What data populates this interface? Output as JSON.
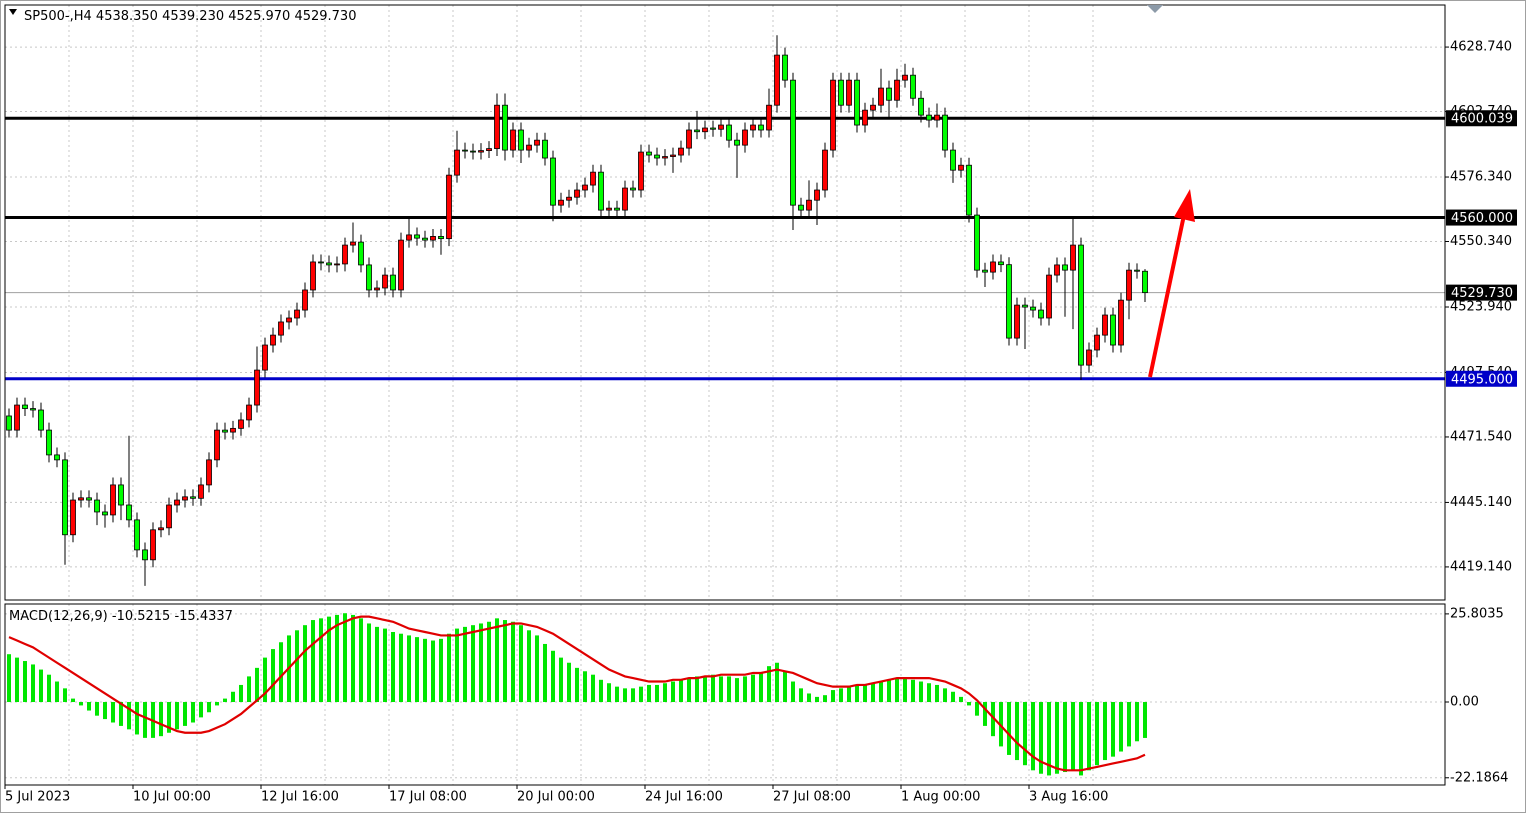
{
  "chart_data": [
    {
      "type": "candlestick",
      "symbol": "SP500-,H4",
      "ohlc_labels": [
        "4538.350",
        "4539.230",
        "4525.970",
        "4529.730"
      ],
      "categories": [
        "5 Jul 2023",
        null,
        null,
        null,
        null,
        null,
        null,
        null,
        null,
        null,
        null,
        null,
        null,
        null,
        null,
        null,
        "10 Jul 00:00",
        null,
        null,
        null,
        null,
        null,
        null,
        null,
        null,
        null,
        null,
        null,
        null,
        null,
        null,
        null,
        "12 Jul 16:00",
        null,
        null,
        null,
        null,
        null,
        null,
        null,
        null,
        null,
        null,
        null,
        null,
        null,
        null,
        null,
        "17 Jul 08:00",
        null,
        null,
        null,
        null,
        null,
        null,
        null,
        null,
        null,
        null,
        null,
        null,
        null,
        null,
        null,
        "20 Jul 00:00",
        null,
        null,
        null,
        null,
        null,
        null,
        null,
        null,
        null,
        null,
        null,
        null,
        null,
        null,
        null,
        "24 Jul 16:00",
        null,
        null,
        null,
        null,
        null,
        null,
        null,
        null,
        null,
        null,
        null,
        null,
        null,
        null,
        null,
        "27 Jul 08:00",
        null,
        null,
        null,
        null,
        null,
        null,
        null,
        null,
        null,
        null,
        null,
        null,
        null,
        null,
        null,
        "1 Aug 00:00",
        null,
        null,
        null,
        null,
        null,
        null,
        null,
        null,
        null,
        null,
        null,
        null,
        null,
        null,
        null,
        "3 Aug 16:00",
        null,
        null,
        null,
        null,
        null,
        null,
        null,
        null,
        null,
        null,
        null,
        null,
        null,
        null
      ],
      "open": [
        4480.0,
        4474.3,
        4484.4,
        4483.0,
        4482.4,
        4474.3,
        4464.3,
        4462.3,
        4432.1,
        4446.1,
        4447.0,
        4446.1,
        4441.3,
        4440.1,
        4452.2,
        4444.1,
        4438.1,
        4426.0,
        4422.0,
        4434.1,
        4434.9,
        4444.1,
        4446.1,
        4447.4,
        4446.8,
        4452.2,
        4462.3,
        4474.3,
        4473.5,
        4475.0,
        4478.4,
        4484.4,
        4498.5,
        4508.6,
        4512.6,
        4517.9,
        4519.5,
        4522.7,
        4530.8,
        4542.1,
        4541.7,
        4540.9,
        4541.3,
        4548.9,
        4550.1,
        4540.9,
        4530.8,
        4531.6,
        4536.8,
        4530.8,
        4550.9,
        4553.0,
        4551.7,
        4550.9,
        4552.4,
        4551.5,
        4577.1,
        4587.2,
        4586.8,
        4586.4,
        4587.0,
        4587.8,
        4605.3,
        4587.2,
        4595.3,
        4587.2,
        4589.2,
        4591.2,
        4584.0,
        4565.0,
        4567.0,
        4568.2,
        4571.1,
        4573.1,
        4578.3,
        4563.0,
        4563.8,
        4563.0,
        4571.9,
        4571.1,
        4586.4,
        4585.2,
        4584.0,
        4584.6,
        4585.2,
        4588.0,
        4595.3,
        4594.6,
        4596.1,
        4595.6,
        4597.3,
        4591.2,
        4589.2,
        4595.3,
        4597.3,
        4595.3,
        4605.3,
        4625.5,
        4615.4,
        4565.0,
        4563.0,
        4567.0,
        4571.1,
        4587.2,
        4615.4,
        4605.3,
        4615.4,
        4597.3,
        4603.3,
        4605.3,
        4612.2,
        4607.3,
        4615.4,
        4617.4,
        4608.1,
        4601.3,
        4599.3,
        4601.3,
        4587.2,
        4579.1,
        4581.1,
        4561.0,
        4538.8,
        4538.0,
        4542.1,
        4541.0,
        4511.4,
        4524.7,
        4523.9,
        4522.7,
        4519.5,
        4536.8,
        4540.9,
        4538.8,
        4548.9,
        4500.5,
        4506.6,
        4512.6,
        4520.7,
        4508.6,
        4526.7,
        4538.8,
        4538.35
      ],
      "high": [
        4483.0,
        4487.4,
        4487.4,
        4486.0,
        4485.4,
        4477.3,
        4467.3,
        4465.3,
        4449.1,
        4450.0,
        4450.0,
        4449.1,
        4444.3,
        4455.2,
        4455.2,
        4472.0,
        4441.1,
        4429.0,
        4437.1,
        4437.9,
        4447.1,
        4449.1,
        4450.4,
        4450.4,
        4455.2,
        4465.3,
        4477.3,
        4477.3,
        4478.0,
        4481.4,
        4487.4,
        4508.0,
        4511.6,
        4515.6,
        4520.9,
        4522.5,
        4525.7,
        4533.8,
        4545.1,
        4545.1,
        4544.7,
        4544.3,
        4551.9,
        4558.0,
        4553.1,
        4543.9,
        4534.6,
        4539.8,
        4539.8,
        4553.9,
        4560.0,
        4556.0,
        4554.7,
        4555.4,
        4555.4,
        4580.1,
        4595.0,
        4590.2,
        4589.8,
        4590.0,
        4590.8,
        4610.0,
        4610.0,
        4598.3,
        4598.3,
        4592.2,
        4594.2,
        4594.2,
        4587.0,
        4570.0,
        4571.2,
        4574.1,
        4576.1,
        4581.3,
        4581.3,
        4566.8,
        4566.8,
        4574.9,
        4574.9,
        4589.4,
        4589.4,
        4588.2,
        4587.6,
        4588.2,
        4591.0,
        4598.3,
        4603.0,
        4599.1,
        4599.1,
        4600.3,
        4600.3,
        4594.2,
        4598.3,
        4600.3,
        4600.3,
        4612.0,
        4633.5,
        4628.5,
        4618.4,
        4568.0,
        4575.0,
        4574.1,
        4590.2,
        4618.4,
        4618.4,
        4618.4,
        4618.4,
        4606.3,
        4608.3,
        4620.0,
        4615.2,
        4620.0,
        4622.0,
        4620.4,
        4611.1,
        4604.3,
        4606.0,
        4604.3,
        4590.2,
        4584.1,
        4584.1,
        4564.0,
        4541.8,
        4545.1,
        4545.1,
        4544.0,
        4527.7,
        4527.7,
        4526.9,
        4525.7,
        4539.8,
        4543.9,
        4543.9,
        4560.0,
        4551.9,
        4509.6,
        4515.6,
        4523.7,
        4523.7,
        4529.7,
        4541.8,
        4541.5,
        4539.23
      ],
      "low": [
        4471.3,
        4471.3,
        4480.0,
        4479.4,
        4471.3,
        4461.3,
        4459.3,
        4420.0,
        4429.1,
        4443.1,
        4443.1,
        4436.0,
        4435.0,
        4437.1,
        4438.0,
        4435.1,
        4423.0,
        4411.5,
        4419.0,
        4431.1,
        4431.9,
        4441.1,
        4443.1,
        4443.8,
        4443.8,
        4449.2,
        4459.3,
        4470.5,
        4470.5,
        4472.0,
        4475.4,
        4481.4,
        4495.5,
        4505.6,
        4509.6,
        4514.9,
        4516.5,
        4519.7,
        4527.8,
        4538.7,
        4537.9,
        4537.9,
        4538.3,
        4545.9,
        4537.9,
        4527.8,
        4527.8,
        4528.6,
        4527.8,
        4527.8,
        4547.9,
        4548.7,
        4547.9,
        4547.9,
        4545.0,
        4548.5,
        4574.1,
        4583.8,
        4583.4,
        4583.4,
        4584.0,
        4584.8,
        4583.0,
        4584.2,
        4582.0,
        4584.2,
        4586.2,
        4581.0,
        4558.5,
        4562.0,
        4564.0,
        4565.2,
        4568.1,
        4570.1,
        4560.0,
        4560.0,
        4560.0,
        4560.0,
        4568.1,
        4568.1,
        4582.2,
        4581.0,
        4581.0,
        4578.0,
        4582.2,
        4585.0,
        4591.6,
        4591.6,
        4592.6,
        4592.6,
        4588.2,
        4576.0,
        4586.2,
        4592.3,
        4592.3,
        4592.3,
        4602.3,
        4612.4,
        4555.0,
        4560.0,
        4560.0,
        4557.0,
        4568.1,
        4584.2,
        4602.3,
        4602.3,
        4594.3,
        4594.3,
        4600.3,
        4602.3,
        4600.0,
        4604.3,
        4612.4,
        4605.1,
        4598.3,
        4596.3,
        4596.3,
        4584.2,
        4574.0,
        4576.1,
        4558.0,
        4535.8,
        4532.0,
        4535.0,
        4538.0,
        4508.4,
        4508.4,
        4507.0,
        4519.7,
        4516.5,
        4516.5,
        4533.8,
        4520.0,
        4515.0,
        4494.5,
        4497.5,
        4503.6,
        4509.6,
        4505.6,
        4505.6,
        4519.0,
        4535.4,
        4525.97
      ],
      "close": [
        4474.3,
        4484.4,
        4483.0,
        4482.4,
        4474.3,
        4464.3,
        4462.3,
        4432.1,
        4446.1,
        4447.0,
        4446.1,
        4441.3,
        4440.1,
        4452.2,
        4444.1,
        4438.1,
        4426.0,
        4422.0,
        4434.1,
        4434.9,
        4444.1,
        4446.1,
        4447.4,
        4446.8,
        4452.2,
        4462.3,
        4474.3,
        4473.5,
        4475.0,
        4478.4,
        4484.4,
        4498.5,
        4508.6,
        4512.6,
        4517.9,
        4519.5,
        4522.7,
        4530.8,
        4542.1,
        4541.7,
        4540.9,
        4541.3,
        4548.9,
        4550.1,
        4540.9,
        4530.8,
        4531.6,
        4536.8,
        4530.8,
        4550.9,
        4553.0,
        4551.7,
        4550.9,
        4552.4,
        4551.5,
        4577.1,
        4587.2,
        4586.8,
        4586.4,
        4587.0,
        4587.8,
        4605.3,
        4587.2,
        4595.3,
        4587.2,
        4589.2,
        4591.2,
        4584.0,
        4565.0,
        4567.0,
        4568.2,
        4571.1,
        4573.1,
        4578.3,
        4563.0,
        4563.8,
        4563.0,
        4571.9,
        4571.1,
        4586.4,
        4585.2,
        4584.0,
        4584.6,
        4585.2,
        4588.0,
        4595.3,
        4594.6,
        4596.1,
        4595.6,
        4597.3,
        4591.2,
        4589.2,
        4595.3,
        4597.3,
        4595.3,
        4605.3,
        4625.5,
        4615.4,
        4565.0,
        4563.0,
        4567.0,
        4571.1,
        4587.2,
        4615.4,
        4605.3,
        4615.4,
        4597.3,
        4603.3,
        4605.3,
        4612.2,
        4607.3,
        4615.4,
        4617.4,
        4608.1,
        4601.3,
        4599.3,
        4601.3,
        4587.2,
        4579.1,
        4581.1,
        4561.0,
        4538.8,
        4538.0,
        4542.1,
        4541.0,
        4511.4,
        4524.7,
        4523.9,
        4522.7,
        4519.5,
        4536.8,
        4540.9,
        4538.8,
        4548.9,
        4500.5,
        4506.6,
        4512.6,
        4520.7,
        4508.6,
        4526.7,
        4538.8,
        4538.35,
        4529.73
      ],
      "bull_color": "#ff0000",
      "bear_color": "#00ff00",
      "ylim": [
        4405.8,
        4645.7
      ],
      "yticks": [
        {
          "value": 4628.74,
          "label": "4628.740"
        },
        {
          "value": 4602.74,
          "label": "4602.740"
        },
        {
          "value": 4576.34,
          "label": "4576.340"
        },
        {
          "value": 4550.34,
          "label": "4550.340"
        },
        {
          "value": 4523.94,
          "label": "4523.940"
        },
        {
          "value": 4497.54,
          "label": "4497.540"
        },
        {
          "value": 4471.54,
          "label": "4471.540"
        },
        {
          "value": 4445.14,
          "label": "4445.140"
        },
        {
          "value": 4419.14,
          "label": "4419.140"
        }
      ],
      "grid": true,
      "levels": [
        {
          "value": 4600.039,
          "label": "4600.039",
          "color": "#000000"
        },
        {
          "value": 4560.0,
          "label": "4560.000",
          "color": "#000000"
        },
        {
          "value": 4495.0,
          "label": "4495.000",
          "color": "#0000c8"
        }
      ],
      "price_line": {
        "value": 4529.73,
        "label": "4529.730",
        "color": "#a0a0a0"
      }
    },
    {
      "type": "macd",
      "title": "MACD(12,26,9)",
      "values": [
        14,
        13,
        12,
        11,
        9.5,
        8,
        6,
        4,
        1,
        -1,
        -2.5,
        -4,
        -5,
        -6,
        -7,
        -8,
        -9.5,
        -10.5,
        -10.5,
        -10,
        -9,
        -8,
        -7,
        -6,
        -4.5,
        -3,
        -1,
        1,
        3,
        5,
        7.5,
        10,
        13,
        15.5,
        17.5,
        19.5,
        21,
        22.5,
        24,
        24.5,
        25,
        25.5,
        26,
        25.5,
        24.5,
        23,
        22,
        21.5,
        20.5,
        20,
        19.5,
        19,
        18.5,
        18,
        18.5,
        20,
        21.5,
        22,
        22.5,
        23,
        23.5,
        24.5,
        24,
        23.5,
        22.5,
        21,
        19.5,
        17,
        15,
        13,
        11.5,
        10,
        9,
        8,
        6.5,
        5.5,
        4.5,
        4,
        4,
        4.5,
        5,
        5,
        5.5,
        6,
        6.5,
        7,
        7.5,
        7.5,
        8,
        7.5,
        7.5,
        7,
        7.5,
        8,
        8.5,
        10.5,
        11.5,
        9,
        6,
        4,
        2.5,
        1.5,
        2,
        3.5,
        4,
        4.5,
        5,
        5,
        5.5,
        6,
        6.5,
        7,
        7,
        6.5,
        6,
        5.5,
        5,
        4,
        3,
        1.5,
        -1,
        -4,
        -7,
        -10,
        -13,
        -15.5,
        -17,
        -18.5,
        -20,
        -21,
        -21.5,
        -21,
        -20.5,
        -20,
        -21.5,
        -20,
        -18.5,
        -17,
        -16,
        -14.5,
        -13,
        -11.5,
        -10.5215
      ],
      "color": "#00e600",
      "signal": [
        19,
        18,
        17,
        16,
        14.5,
        13,
        11.5,
        10,
        8.5,
        7,
        5.5,
        4,
        2.5,
        1,
        -0.5,
        -2,
        -3.5,
        -4.5,
        -5.5,
        -6.5,
        -7.5,
        -8.5,
        -9,
        -9,
        -9,
        -8.5,
        -7.5,
        -6.5,
        -5,
        -3.5,
        -1.5,
        0.5,
        2.5,
        5,
        7.5,
        10,
        12.5,
        15,
        17,
        19,
        21,
        22.5,
        23.5,
        24.5,
        25,
        25,
        24.5,
        24,
        23.5,
        22.5,
        21.5,
        21,
        20.5,
        20,
        19.5,
        19.5,
        19.5,
        20,
        20.5,
        21,
        21.5,
        22,
        22.5,
        23,
        23,
        22.5,
        22,
        21,
        20,
        18.5,
        17,
        15.5,
        14,
        12.5,
        11,
        9.5,
        8.5,
        7.5,
        7,
        6.5,
        6,
        6,
        6,
        6.5,
        6.5,
        7,
        7,
        7.5,
        7.5,
        8,
        8,
        8,
        8,
        8.5,
        8.5,
        9,
        9.5,
        9,
        8.5,
        7.5,
        6.5,
        5.5,
        5,
        4.5,
        4.5,
        4.5,
        5,
        5,
        5.5,
        6,
        6.5,
        7,
        7,
        7,
        7,
        7,
        6.5,
        6,
        5,
        4,
        2.5,
        0.5,
        -2,
        -4.5,
        -7,
        -9.5,
        -12,
        -14,
        -16,
        -17.5,
        -18.5,
        -19.5,
        -20,
        -20,
        -20,
        -19.5,
        -19,
        -18.5,
        -18,
        -17.5,
        -17,
        -16.5,
        -15.4337
      ],
      "signal_color": "#e00000",
      "ylim": [
        -24.3,
        28.7
      ],
      "yticks": [
        25.8035,
        {
          "value": 0,
          "label": "0.00"
        },
        -22.1864
      ],
      "grid": true
    }
  ]
}
